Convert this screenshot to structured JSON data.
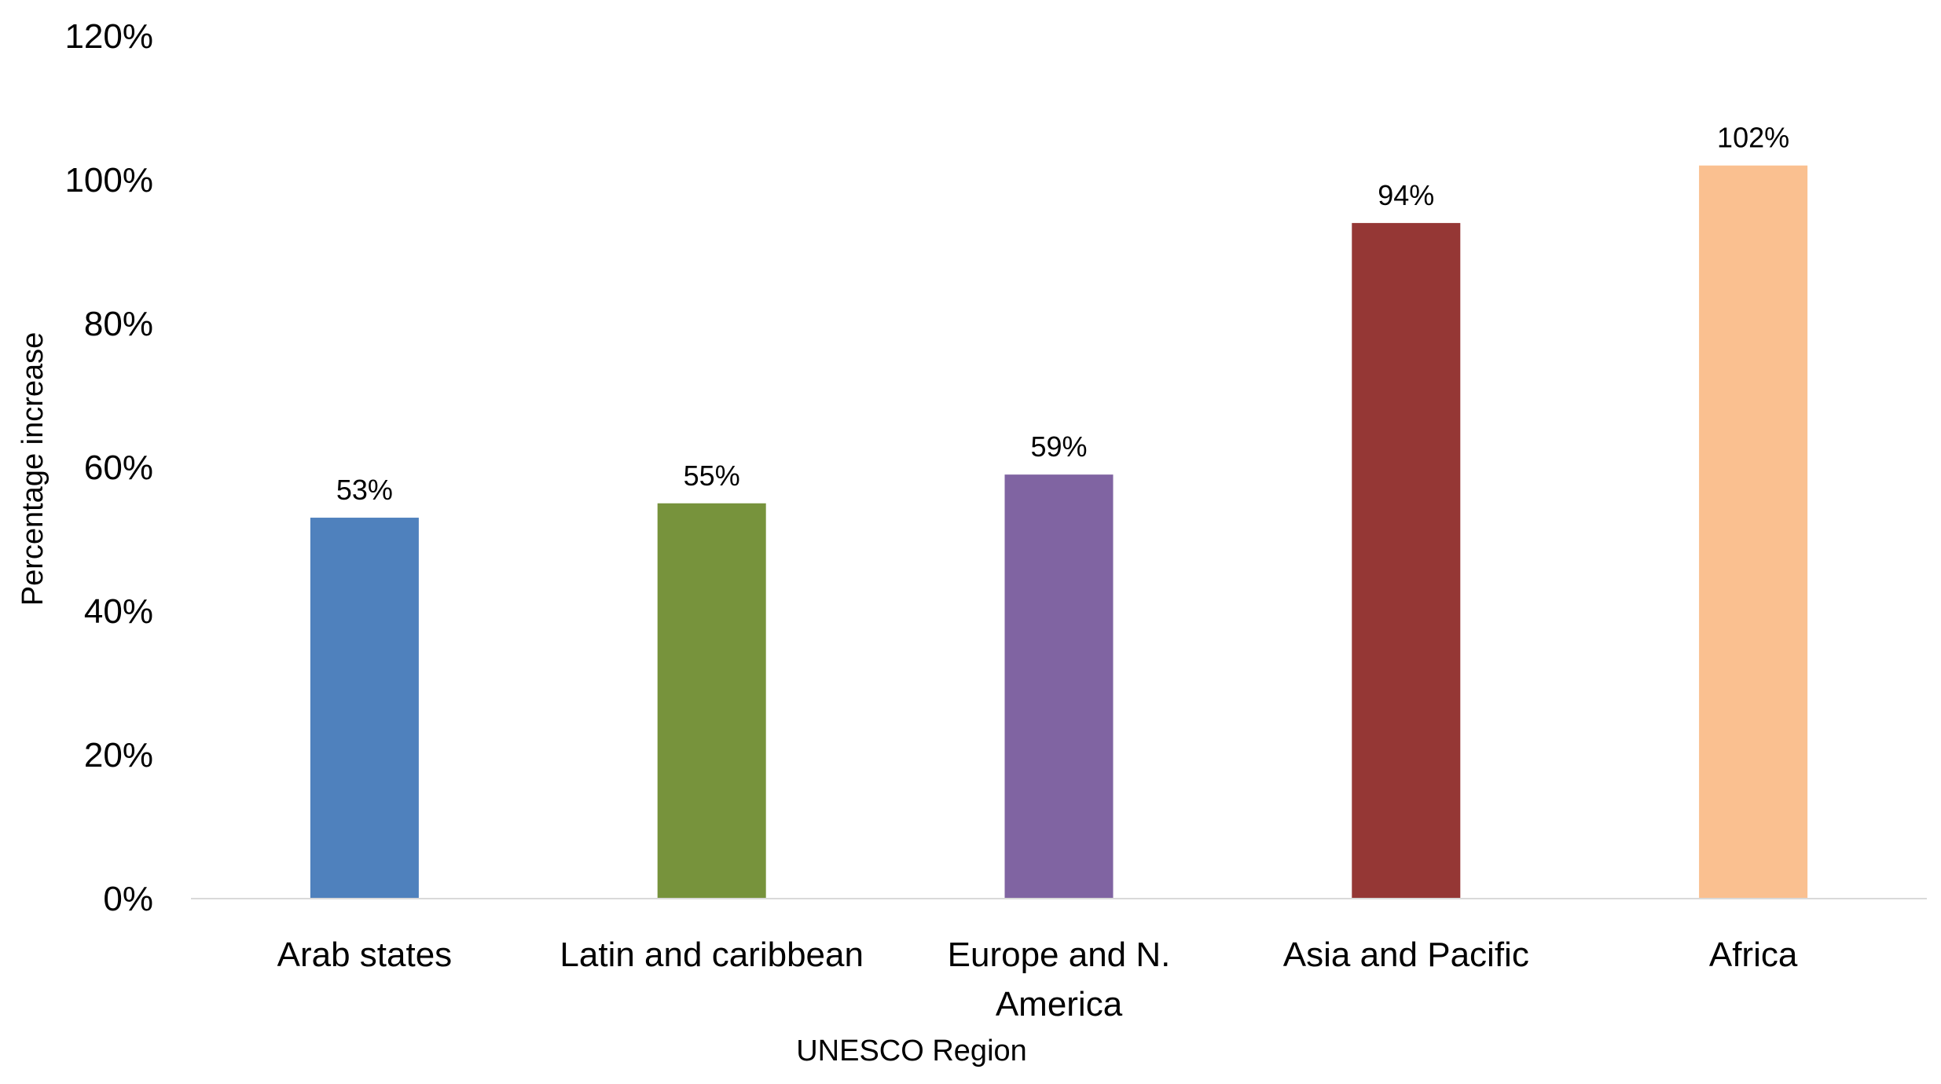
{
  "chart_data": {
    "type": "bar",
    "categories": [
      "Arab states",
      "Latin and caribbean",
      "Europe and N. America",
      "Asia and Pacific",
      "Africa"
    ],
    "category_lines": [
      [
        "Arab states"
      ],
      [
        "Latin and caribbean"
      ],
      [
        "Europe and N.",
        "America"
      ],
      [
        "Asia and Pacific"
      ],
      [
        "Africa"
      ]
    ],
    "values": [
      53,
      55,
      59,
      94,
      102
    ],
    "data_labels": [
      "53%",
      "55%",
      "59%",
      "94%",
      "102%"
    ],
    "colors": [
      "#4F81BD",
      "#77933C",
      "#8064A2",
      "#953735",
      "#FAC090"
    ],
    "title": "",
    "xlabel": "UNESCO Region",
    "ylabel": "Percentage increase",
    "ylim": [
      0,
      120
    ],
    "yticks": [
      0,
      20,
      40,
      60,
      80,
      100,
      120
    ],
    "ytick_labels": [
      "0%",
      "20%",
      "40%",
      "60%",
      "80%",
      "100%",
      "120%"
    ],
    "grid": false,
    "legend": "none",
    "axis_color": "#D9D9D9"
  }
}
